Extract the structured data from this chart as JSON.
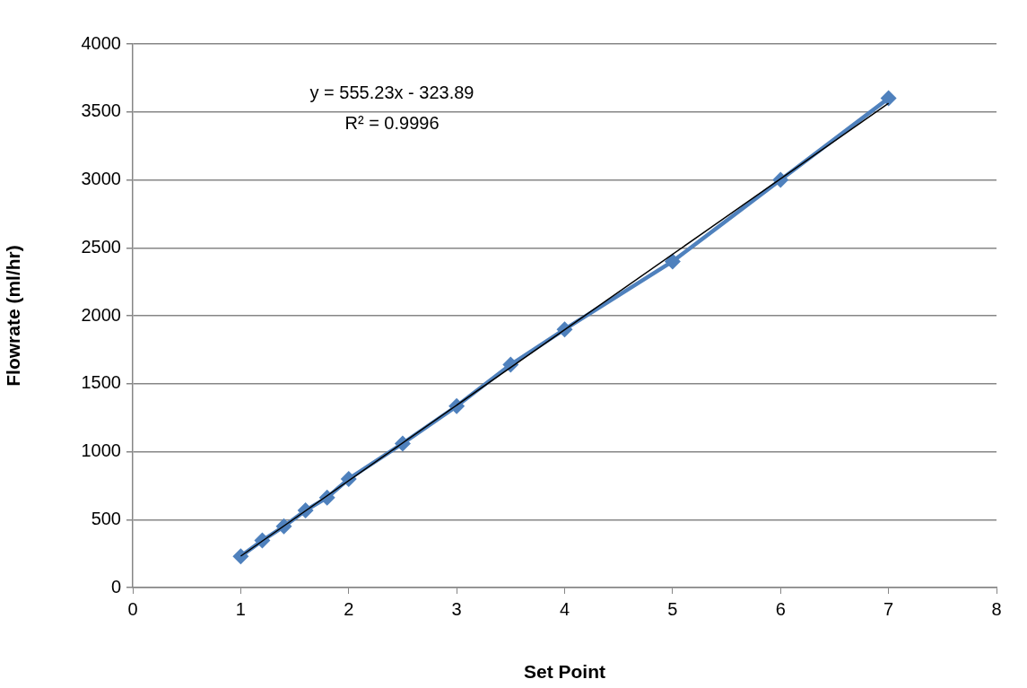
{
  "chart_data": {
    "type": "line",
    "xlabel": "Set Point",
    "ylabel": "Flowrate (ml/hr)",
    "xlim": [
      0,
      8
    ],
    "xticks": [
      0,
      1,
      2,
      3,
      4,
      5,
      6,
      7,
      8
    ],
    "ylim": [
      0,
      4000
    ],
    "yticks": [
      0,
      500,
      1000,
      1500,
      2000,
      2500,
      3000,
      3500,
      4000
    ],
    "grid": "y",
    "legend": false,
    "series": [
      {
        "color": "#4f81bd",
        "marker": "diamond",
        "x": [
          1,
          1.2,
          1.4,
          1.6,
          1.8,
          2,
          2.5,
          3,
          3.5,
          4,
          5,
          6,
          7
        ],
        "values": [
          230,
          346,
          450,
          567,
          662,
          799,
          1060,
          1335,
          1640,
          1900,
          2400,
          3000,
          3600
        ]
      },
      {
        "type": "line",
        "color": "#000000",
        "marker": "none",
        "x": [
          1,
          7
        ],
        "values": [
          231,
          3563
        ]
      }
    ],
    "annotations": [
      "y = 555.23x - 323.89",
      "R² = 0.9996"
    ]
  }
}
